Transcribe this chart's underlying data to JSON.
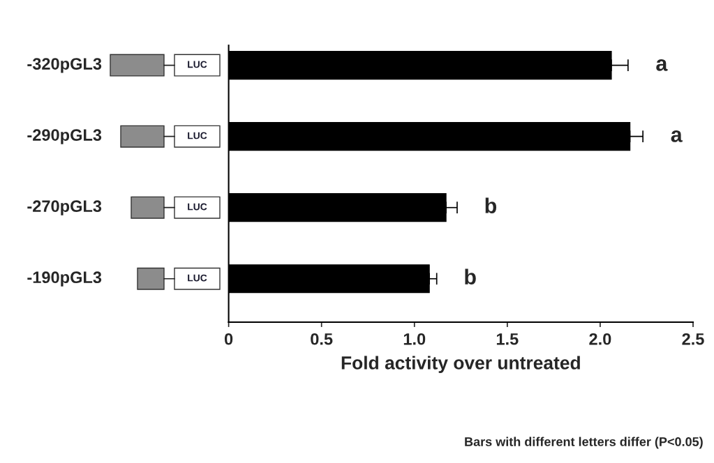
{
  "chart_data": {
    "type": "bar",
    "orientation": "horizontal",
    "categories": [
      "-320pGL3",
      "-290pGL3",
      "-270pGL3",
      "-190pGL3"
    ],
    "values": [
      2.06,
      2.16,
      1.17,
      1.08
    ],
    "errors": [
      0.09,
      0.07,
      0.06,
      0.04
    ],
    "color": "#000000",
    "xlabel": "Fold activity over untreated",
    "xlim": [
      0,
      2.5
    ],
    "xticks": [
      0,
      {
        "value": 0.5,
        "label": "0.5"
      },
      {
        "value": 1.0,
        "label": "1.0"
      },
      {
        "value": 1.5,
        "label": "1.5"
      },
      {
        "value": 2.0,
        "label": "2.0"
      },
      {
        "value": 2.5,
        "label": "2.5"
      }
    ],
    "grid": false,
    "annotations": [
      "a",
      "a",
      "b",
      "b",
      "LUC",
      "LUC",
      "LUC",
      "LUC",
      "Bars with different letters differ (P<0.05)"
    ]
  }
}
